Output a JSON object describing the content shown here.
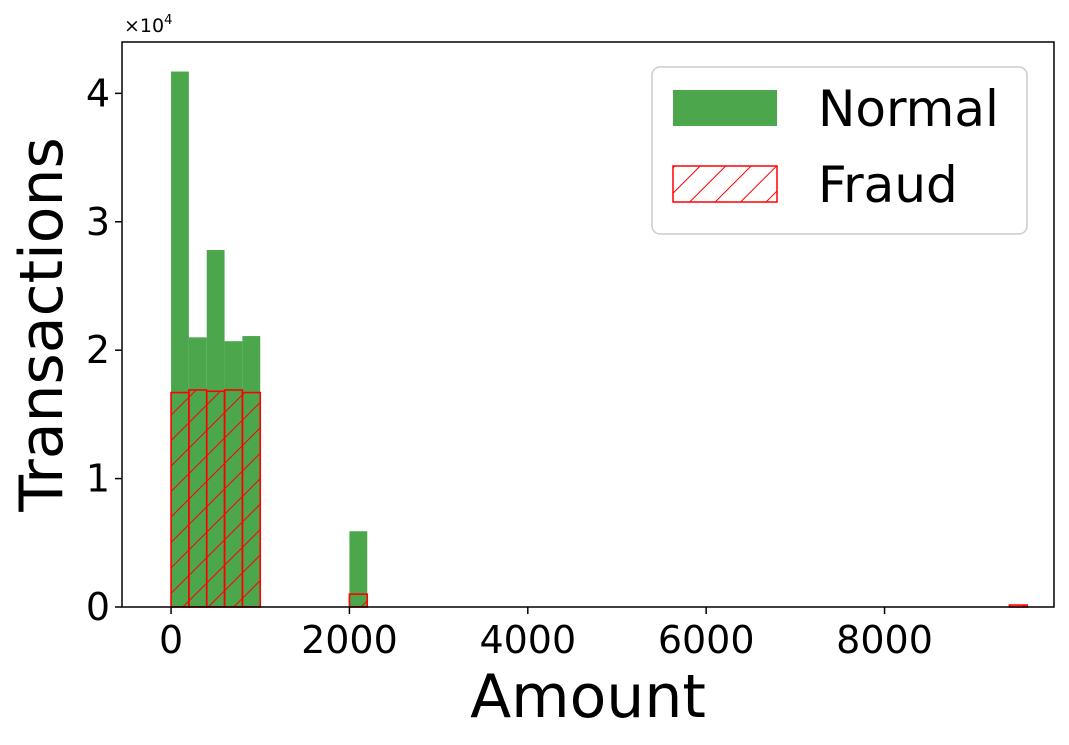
{
  "chart_data": {
    "type": "bar",
    "title": "",
    "xlabel": "Amount",
    "ylabel": "Transactions",
    "y_offset_base": "×10",
    "y_offset_exp": "4",
    "xlim": [
      -550,
      9900
    ],
    "ylim": [
      0,
      44000
    ],
    "x_ticks": [
      0,
      2000,
      4000,
      6000,
      8000
    ],
    "x_tick_labels": [
      "0",
      "2000",
      "4000",
      "6000",
      "8000"
    ],
    "y_ticks": [
      0,
      10000,
      20000,
      30000,
      40000
    ],
    "y_tick_labels": [
      "0",
      "1",
      "2",
      "3",
      "4"
    ],
    "grid": false,
    "legend_position": "top-right",
    "colors": {
      "normal": "#4ca64c",
      "fraud": "#ff0000"
    },
    "series": [
      {
        "name": "Normal",
        "style": "filled",
        "bins": [
          {
            "x0": 0,
            "x1": 200,
            "value": 41700
          },
          {
            "x0": 200,
            "x1": 400,
            "value": 21000
          },
          {
            "x0": 400,
            "x1": 600,
            "value": 27800
          },
          {
            "x0": 600,
            "x1": 800,
            "value": 20700
          },
          {
            "x0": 800,
            "x1": 1000,
            "value": 21100
          },
          {
            "x0": 2000,
            "x1": 2200,
            "value": 5900
          }
        ]
      },
      {
        "name": "Fraud",
        "style": "hatched",
        "bins": [
          {
            "x0": 0,
            "x1": 200,
            "value": 16700
          },
          {
            "x0": 200,
            "x1": 400,
            "value": 16900
          },
          {
            "x0": 400,
            "x1": 600,
            "value": 16800
          },
          {
            "x0": 600,
            "x1": 800,
            "value": 16900
          },
          {
            "x0": 800,
            "x1": 1000,
            "value": 16700
          },
          {
            "x0": 2000,
            "x1": 2200,
            "value": 1000
          },
          {
            "x0": 9400,
            "x1": 9600,
            "value": 150
          }
        ]
      }
    ]
  }
}
